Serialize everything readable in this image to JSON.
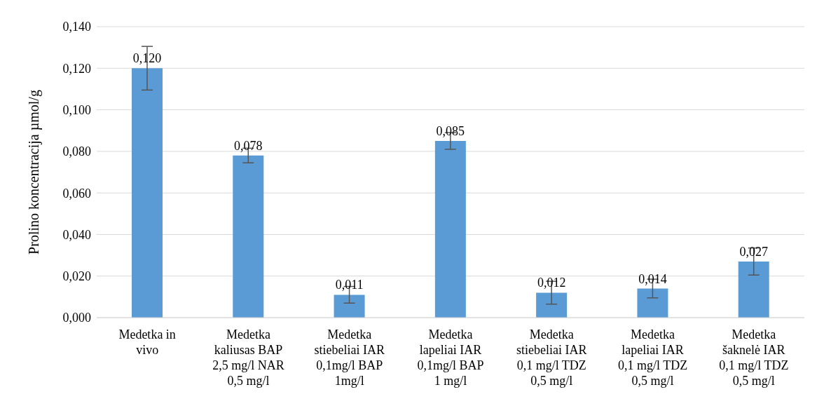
{
  "chart_data": {
    "type": "bar",
    "ylabel": "Prolino koncentracija µmol/g",
    "categories": [
      "Medetka in\nvivo",
      "Medetka\nkaliusas BAP\n2,5 mg/l NAR\n0,5 mg/l",
      "Medetka\nstiebeliai IAR\n0,1mg/l BAP\n1mg/l",
      "Medetka\nlapeliai IAR\n0,1mg/l BAP\n1 mg/l",
      "Medetka\nstiebeliai IAR\n0,1 mg/l TDZ\n0,5 mg/l",
      "Medetka\nlapeliai IAR\n0,1 mg/l TDZ\n0,5 mg/l",
      "Medetka\nšaknelė IAR\n0,1 mg/l TDZ\n0,5 mg/l"
    ],
    "values": [
      0.12,
      0.078,
      0.011,
      0.085,
      0.012,
      0.014,
      0.027
    ],
    "value_labels": [
      "0,120",
      "0,078",
      "0,011",
      "0,085",
      "0,012",
      "0,014",
      "0,027"
    ],
    "errors": [
      0.0105,
      0.0035,
      0.004,
      0.004,
      0.0055,
      0.0045,
      0.0065
    ],
    "color": "#5b9bd5",
    "ylim": [
      0,
      0.14
    ],
    "yticks": [
      {
        "value": 0,
        "label": "0,000"
      },
      {
        "value": 0.02,
        "label": "0,020"
      },
      {
        "value": 0.04,
        "label": "0,040"
      },
      {
        "value": 0.06,
        "label": "0,060"
      },
      {
        "value": 0.08,
        "label": "0,080"
      },
      {
        "value": 0.1,
        "label": "0,100"
      },
      {
        "value": 0.12,
        "label": "0,120"
      },
      {
        "value": 0.14,
        "label": "0,140"
      }
    ],
    "grid": "y",
    "legend": false
  }
}
